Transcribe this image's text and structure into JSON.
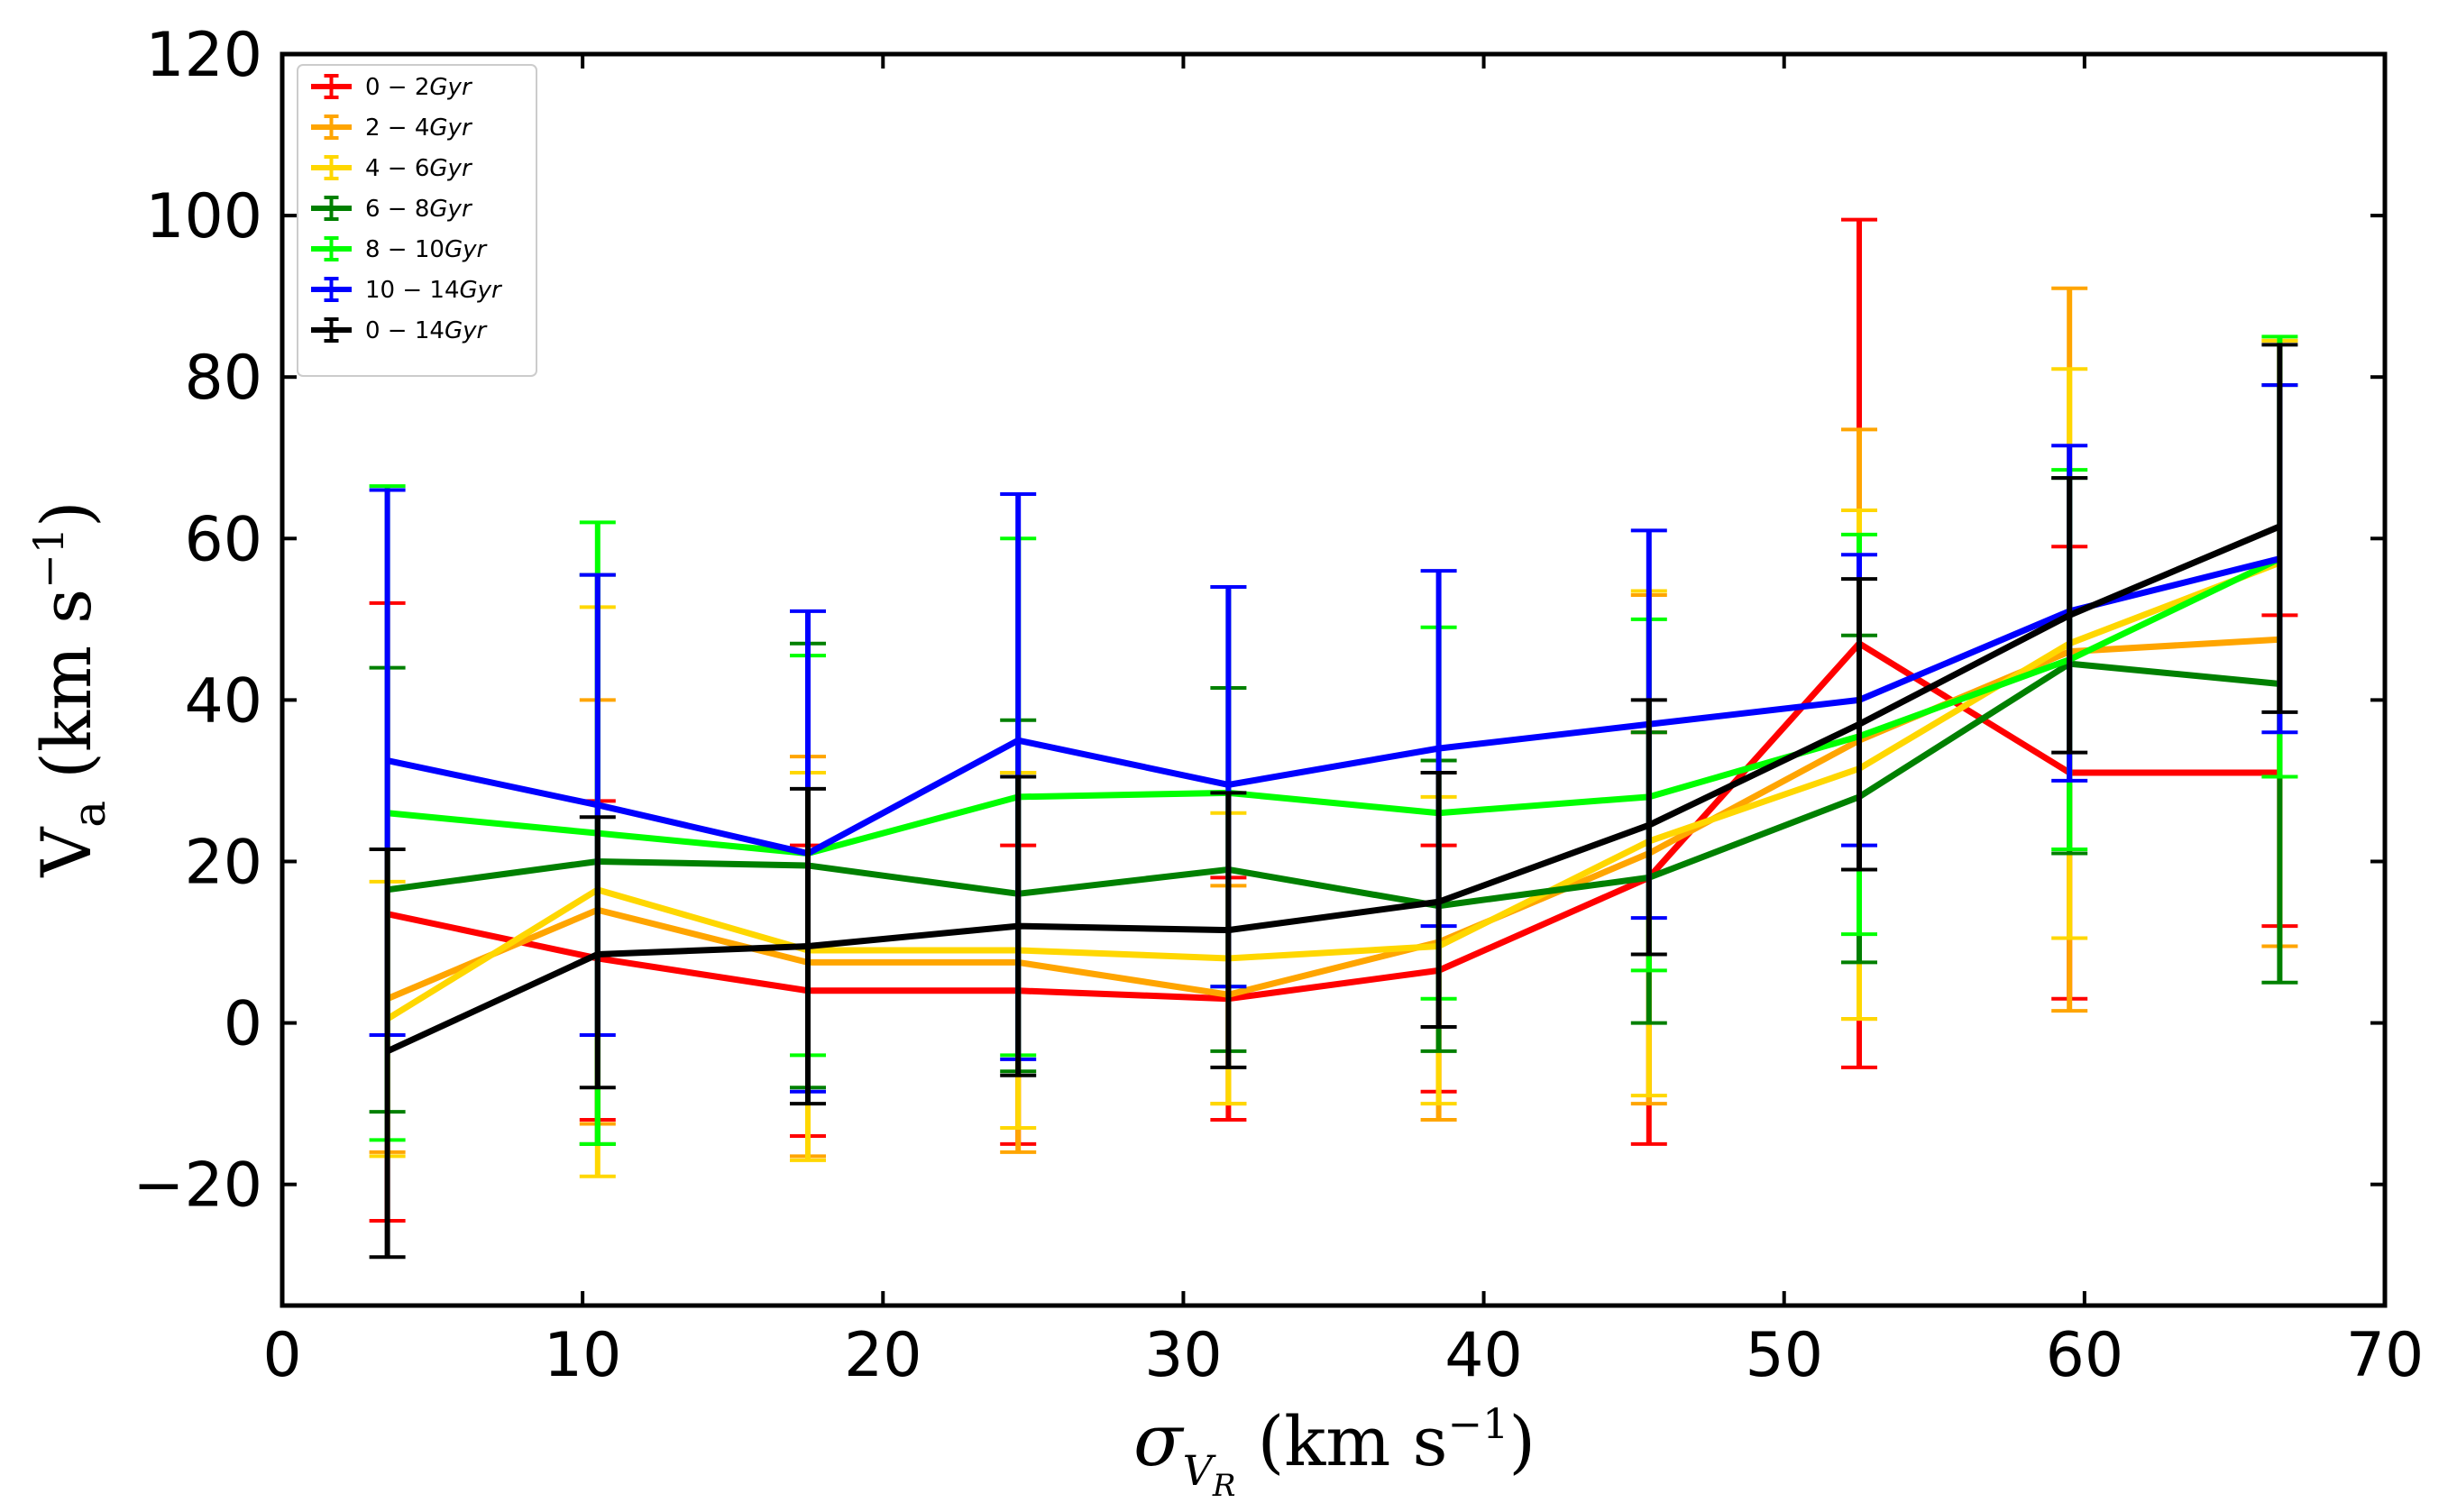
{
  "chart_data": {
    "type": "line",
    "title": "",
    "xlabel": "σ_{V_R} (km s^{-1})",
    "ylabel": "V_a (km s^{-1})",
    "xlim": [
      0,
      70
    ],
    "ylim": [
      -35,
      120
    ],
    "xticks": [
      0,
      10,
      20,
      30,
      40,
      50,
      60,
      70
    ],
    "yticks": [
      -20,
      0,
      20,
      40,
      60,
      80,
      100,
      120
    ],
    "xtick_labels": [
      "0",
      "10",
      "20",
      "30",
      "40",
      "50",
      "60",
      "70"
    ],
    "ytick_labels": [
      "−20",
      "0",
      "20",
      "40",
      "60",
      "80",
      "100",
      "120"
    ],
    "legend_position": "top-left",
    "grid": false,
    "x": [
      3.5,
      10.5,
      17.5,
      24.5,
      31.5,
      38.5,
      45.5,
      52.5,
      59.5,
      66.5
    ],
    "series": [
      {
        "name": "0 − 2Gyr",
        "label_num": "0 − 2",
        "label_unit": "Gyr",
        "color": "#ff0000",
        "values": [
          13.5,
          8,
          4,
          4,
          3,
          6.5,
          18,
          47,
          31,
          31
        ],
        "err_low": [
          -24.5,
          -12,
          -14,
          -15,
          -12,
          -8.5,
          -15,
          -5.5,
          3,
          12
        ],
        "err_high": [
          52,
          27.5,
          22,
          22,
          18,
          22,
          36,
          99.5,
          59,
          50.5
        ]
      },
      {
        "name": "2 − 4Gyr",
        "label_num": "2 − 4",
        "label_unit": "Gyr",
        "color": "#ffa500",
        "values": [
          3,
          14,
          7.5,
          7.5,
          3.5,
          10,
          21,
          35,
          46,
          47.5
        ],
        "err_low": [
          -16,
          -12.5,
          -16.5,
          -16,
          -10,
          -12,
          -10,
          0.5,
          1.5,
          9.5
        ],
        "err_high": [
          21.5,
          40,
          33,
          31,
          17,
          31,
          53,
          73.5,
          91,
          84.5
        ]
      },
      {
        "name": "4 − 6Gyr",
        "label_num": "4 − 6",
        "label_unit": "Gyr",
        "color": "#ffd700",
        "values": [
          0.5,
          16.5,
          9,
          9,
          8,
          9.5,
          22.5,
          31.5,
          47,
          57
        ],
        "err_low": [
          -16.5,
          -19,
          -17,
          -13,
          -10,
          -10,
          -9,
          0.5,
          10.5,
          30.5
        ],
        "err_high": [
          17.5,
          51.5,
          31,
          31,
          26,
          28,
          53.5,
          63.5,
          81,
          84.5
        ]
      },
      {
        "name": "6 − 8Gyr",
        "label_num": "6 − 8",
        "label_unit": "Gyr",
        "color": "#008000",
        "values": [
          16.5,
          20,
          19.5,
          16,
          19,
          14.5,
          18,
          28,
          44.5,
          42
        ],
        "err_low": [
          -11,
          -15,
          -8,
          -6,
          -3.5,
          -3.5,
          0,
          7.5,
          21,
          5
        ],
        "err_high": [
          44,
          55.5,
          47,
          37.5,
          41.5,
          32.5,
          36,
          48,
          67.5,
          79
        ]
      },
      {
        "name": "8 − 10Gyr",
        "label_num": "8 − 10",
        "label_unit": "Gyr",
        "color": "#00ff00",
        "values": [
          26,
          23.5,
          21,
          28,
          28.5,
          26,
          28,
          35.5,
          45,
          57.5
        ],
        "err_low": [
          -14.5,
          -15,
          -4,
          -4,
          4.5,
          3,
          6.5,
          11,
          21.5,
          30.5
        ],
        "err_high": [
          66.5,
          62,
          45.5,
          60,
          54,
          49,
          50,
          60.5,
          68.5,
          85
        ]
      },
      {
        "name": "10 − 14Gyr",
        "label_num": "10 − 14",
        "label_unit": "Gyr",
        "color": "#0000ff",
        "values": [
          32.5,
          27,
          21,
          35,
          29.5,
          34,
          37,
          40,
          51,
          57.5
        ],
        "err_low": [
          -1.5,
          -1.5,
          -8.5,
          -4.5,
          4.5,
          12,
          13,
          22,
          30,
          36
        ],
        "err_high": [
          66,
          55.5,
          51,
          65.5,
          54,
          56,
          61,
          58,
          71.5,
          79
        ]
      },
      {
        "name": "0 − 14Gyr",
        "label_num": "0 − 14",
        "label_unit": "Gyr",
        "color": "#000000",
        "values": [
          -3.5,
          8.5,
          9.5,
          12,
          11.5,
          15,
          24.5,
          37,
          50.5,
          61.5
        ],
        "err_low": [
          -29,
          -8,
          -10,
          -6.5,
          -5.5,
          -0.5,
          8.5,
          19,
          33.5,
          38.5
        ],
        "err_high": [
          21.5,
          25.5,
          29,
          30.5,
          28.5,
          31,
          40,
          55,
          67.5,
          84
        ]
      }
    ]
  }
}
